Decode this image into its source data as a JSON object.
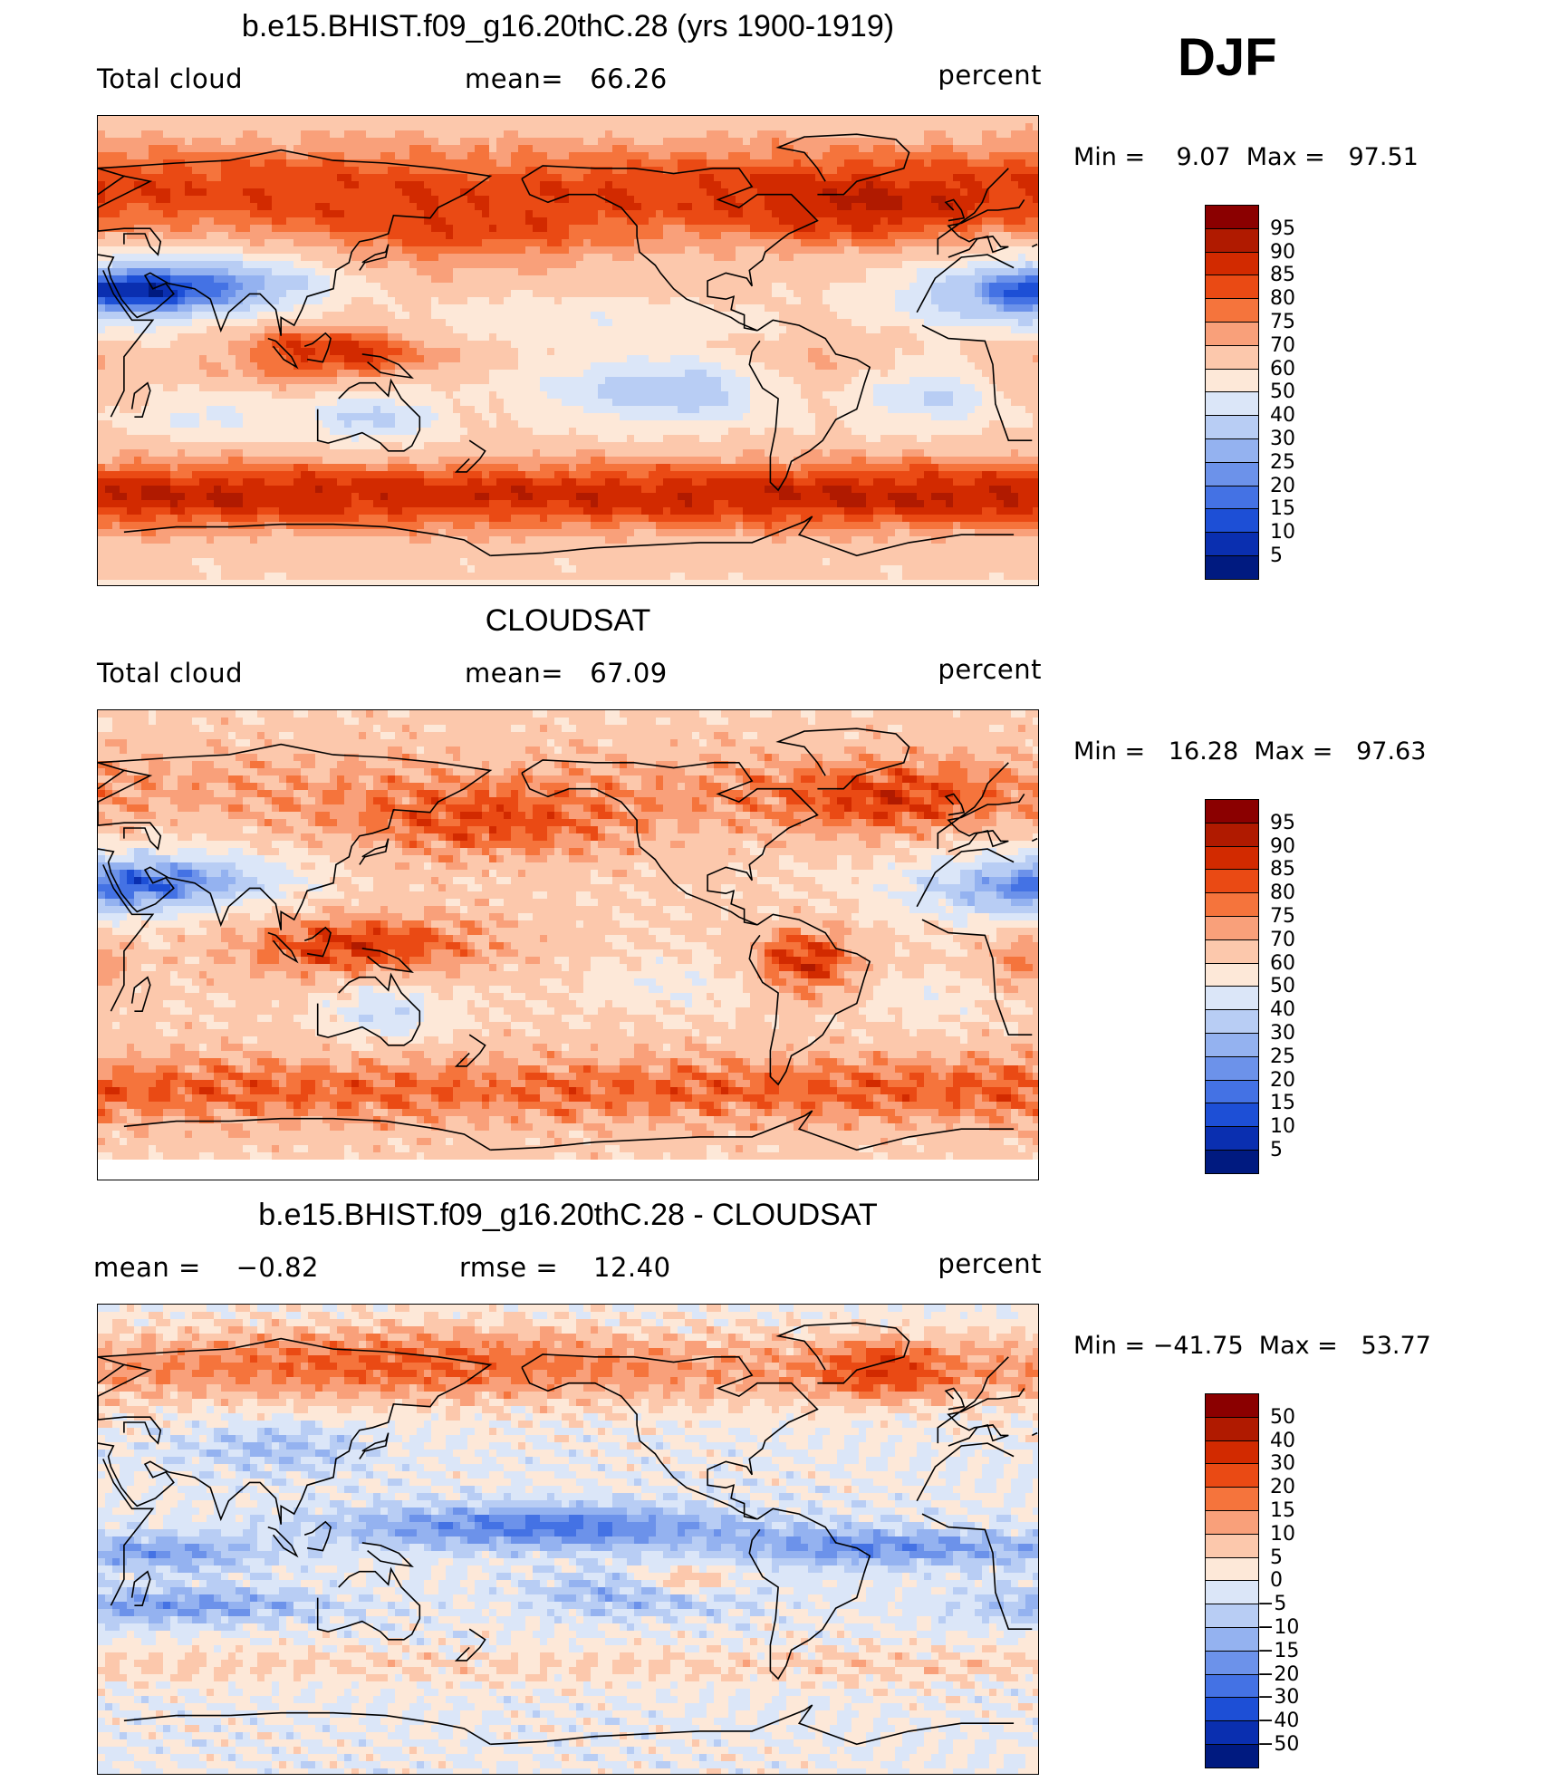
{
  "season": "DJF",
  "panels": [
    {
      "id": "model",
      "title": "b.e15.BHIST.f09_g16.20thC.28 (yrs 1900-1919)",
      "left_text": "Total cloud",
      "mid_text": "mean=   66.26",
      "units": "percent",
      "minmax": "Min =    9.07  Max =   97.51",
      "colorbar": {
        "levels": [
          "95",
          "90",
          "85",
          "80",
          "75",
          "70",
          "60",
          "50",
          "40",
          "30",
          "25",
          "20",
          "15",
          "10",
          "5"
        ],
        "colors": [
          "#8b0000",
          "#b01a00",
          "#d22a00",
          "#ea4a14",
          "#f5743c",
          "#f9a07a",
          "#fcc8ac",
          "#fde8d8",
          "#dbe6f8",
          "#b8cdf4",
          "#94b2f0",
          "#6c92ea",
          "#4472e4",
          "#1d4fd6",
          "#0a2fb0",
          "#001a80"
        ]
      },
      "field": "model"
    },
    {
      "id": "obs",
      "title": "CLOUDSAT",
      "left_text": "Total cloud",
      "mid_text": "mean=   67.09",
      "units": "percent",
      "minmax": "Min =   16.28  Max =   97.63",
      "colorbar": {
        "levels": [
          "95",
          "90",
          "85",
          "80",
          "75",
          "70",
          "60",
          "50",
          "40",
          "30",
          "25",
          "20",
          "15",
          "10",
          "5"
        ],
        "colors": [
          "#8b0000",
          "#b01a00",
          "#d22a00",
          "#ea4a14",
          "#f5743c",
          "#f9a07a",
          "#fcc8ac",
          "#fde8d8",
          "#dbe6f8",
          "#b8cdf4",
          "#94b2f0",
          "#6c92ea",
          "#4472e4",
          "#1d4fd6",
          "#0a2fb0",
          "#001a80"
        ]
      },
      "field": "obs"
    },
    {
      "id": "diff",
      "title": "b.e15.BHIST.f09_g16.20thC.28 - CLOUDSAT",
      "left_text": "mean =    −0.82",
      "mid_text": "rmse =    12.40",
      "units": "percent",
      "minmax": "Min = −41.75  Max =   53.77",
      "colorbar": {
        "levels": [
          "50",
          "40",
          "30",
          "20",
          "15",
          "10",
          "5",
          "0",
          "−5",
          "−10",
          "−15",
          "−20",
          "−30",
          "−40",
          "−50"
        ],
        "colors": [
          "#8b0000",
          "#b01a00",
          "#d22a00",
          "#ea4a14",
          "#f5743c",
          "#f9a07a",
          "#fcc8ac",
          "#fde8d8",
          "#dbe6f8",
          "#b8cdf4",
          "#94b2f0",
          "#6c92ea",
          "#4472e4",
          "#1d4fd6",
          "#0a2fb0",
          "#001a80"
        ]
      },
      "field": "diff"
    }
  ]
}
